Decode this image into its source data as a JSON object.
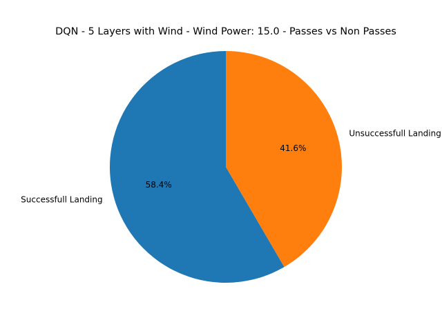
{
  "chart_data": {
    "type": "pie",
    "title": "DQN - 5 Layers with Wind - Wind Power: 15.0 - Passes vs Non Passes",
    "categories": [
      "Successfull Landing",
      "Unsuccessfull Landing"
    ],
    "values": [
      58.4,
      41.6
    ],
    "percent_labels": [
      "58.4%",
      "41.6%"
    ],
    "colors": [
      "#1f77b4",
      "#ff7f0e"
    ],
    "start_angle_deg": 90,
    "direction": "counterclockwise"
  }
}
